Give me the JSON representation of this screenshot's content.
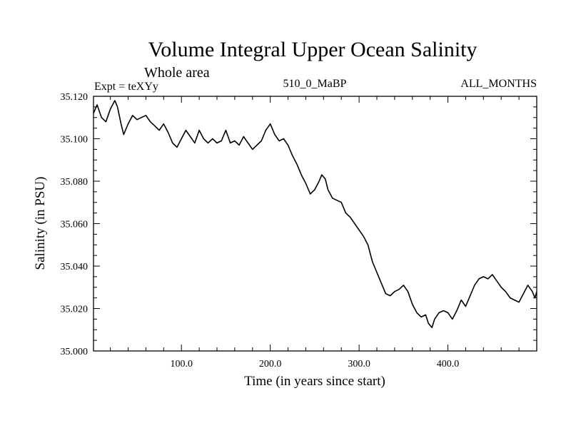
{
  "chart_data": {
    "type": "line",
    "title": "Volume Integral Upper Ocean Salinity",
    "subtitle": "Whole area",
    "header_left": "Expt = teXYy",
    "header_center": "510_0_MaBP",
    "header_right": "ALL_MONTHS",
    "xlabel": "Time (in years since start)",
    "ylabel": "Salinity (in PSU)",
    "xlim": [
      1,
      500
    ],
    "ylim": [
      35.0,
      35.12
    ],
    "x_ticks": [
      100,
      200,
      300,
      400
    ],
    "x_tick_labels": [
      "100.0",
      "200.0",
      "300.0",
      "400.0"
    ],
    "y_ticks": [
      35.0,
      35.02,
      35.04,
      35.06,
      35.08,
      35.1,
      35.12
    ],
    "y_tick_labels": [
      "35.000",
      "35.020",
      "35.040",
      "35.060",
      "35.080",
      "35.100",
      "35.120"
    ],
    "grid": false,
    "series": [
      {
        "color": "#000000",
        "x": [
          1,
          5,
          10,
          15,
          20,
          25,
          28,
          32,
          35,
          40,
          45,
          50,
          55,
          60,
          65,
          70,
          75,
          80,
          85,
          90,
          95,
          100,
          105,
          110,
          115,
          120,
          125,
          130,
          135,
          140,
          145,
          150,
          155,
          160,
          165,
          170,
          175,
          180,
          185,
          190,
          195,
          200,
          205,
          210,
          215,
          220,
          225,
          230,
          235,
          240,
          245,
          250,
          255,
          258,
          262,
          265,
          270,
          275,
          280,
          285,
          290,
          295,
          300,
          305,
          310,
          315,
          320,
          325,
          330,
          335,
          340,
          345,
          350,
          355,
          360,
          365,
          370,
          375,
          378,
          382,
          385,
          390,
          395,
          400,
          405,
          410,
          415,
          420,
          425,
          430,
          435,
          440,
          445,
          450,
          455,
          460,
          465,
          470,
          475,
          480,
          485,
          490,
          495,
          498,
          500
        ],
        "y": [
          35.112,
          35.116,
          35.11,
          35.108,
          35.114,
          35.118,
          35.115,
          35.107,
          35.102,
          35.107,
          35.111,
          35.109,
          35.11,
          35.111,
          35.108,
          35.106,
          35.104,
          35.107,
          35.103,
          35.098,
          35.096,
          35.1,
          35.104,
          35.101,
          35.098,
          35.104,
          35.1,
          35.098,
          35.1,
          35.098,
          35.099,
          35.104,
          35.098,
          35.099,
          35.097,
          35.101,
          35.098,
          35.095,
          35.097,
          35.099,
          35.104,
          35.107,
          35.102,
          35.099,
          35.1,
          35.097,
          35.092,
          35.088,
          35.083,
          35.079,
          35.074,
          35.076,
          35.08,
          35.083,
          35.081,
          35.076,
          35.072,
          35.071,
          35.07,
          35.065,
          35.063,
          35.06,
          35.057,
          35.054,
          35.05,
          35.042,
          35.037,
          35.032,
          35.027,
          35.026,
          35.028,
          35.029,
          35.031,
          35.028,
          35.022,
          35.018,
          35.016,
          35.017,
          35.013,
          35.011,
          35.015,
          35.018,
          35.019,
          35.018,
          35.015,
          35.019,
          35.024,
          35.021,
          35.026,
          35.031,
          35.034,
          35.035,
          35.034,
          35.036,
          35.033,
          35.03,
          35.028,
          35.025,
          35.024,
          35.023,
          35.027,
          35.031,
          35.028,
          35.025,
          35.028
        ]
      }
    ]
  }
}
